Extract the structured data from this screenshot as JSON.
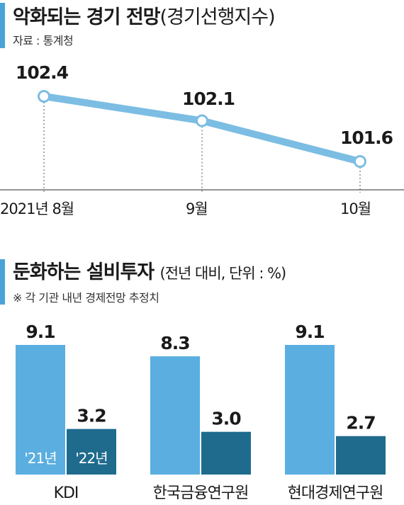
{
  "chart_data": [
    {
      "type": "line",
      "title": "악화되는 경기 전망",
      "subtitle": "(경기선행지수)",
      "source": "자료 : 통계청",
      "categories": [
        "2021년 8월",
        "9월",
        "10월"
      ],
      "values": [
        102.4,
        102.1,
        101.6
      ],
      "value_labels": [
        "102.4",
        "102.1",
        "101.6"
      ],
      "line_color": "#7cbde3",
      "grid": false
    },
    {
      "type": "bar",
      "title": "둔화하는 설비투자",
      "subtitle": "(전년 대비, 단위 : %)",
      "note": "※ 각 기관 내년 경제전망 추정치",
      "categories": [
        "KDI",
        "한국금융연구원",
        "현대경제연구원"
      ],
      "series": [
        {
          "name": "'21년",
          "values": [
            9.1,
            8.3,
            9.1
          ],
          "labels": [
            "9.1",
            "8.3",
            "9.1"
          ],
          "color": "#5aaee0"
        },
        {
          "name": "'22년",
          "values": [
            3.2,
            3.0,
            2.7
          ],
          "labels": [
            "3.2",
            "3.0",
            "2.7"
          ],
          "color": "#1f6b8e"
        }
      ],
      "legend": "inside-first-group",
      "ylim": [
        0,
        10
      ]
    }
  ]
}
